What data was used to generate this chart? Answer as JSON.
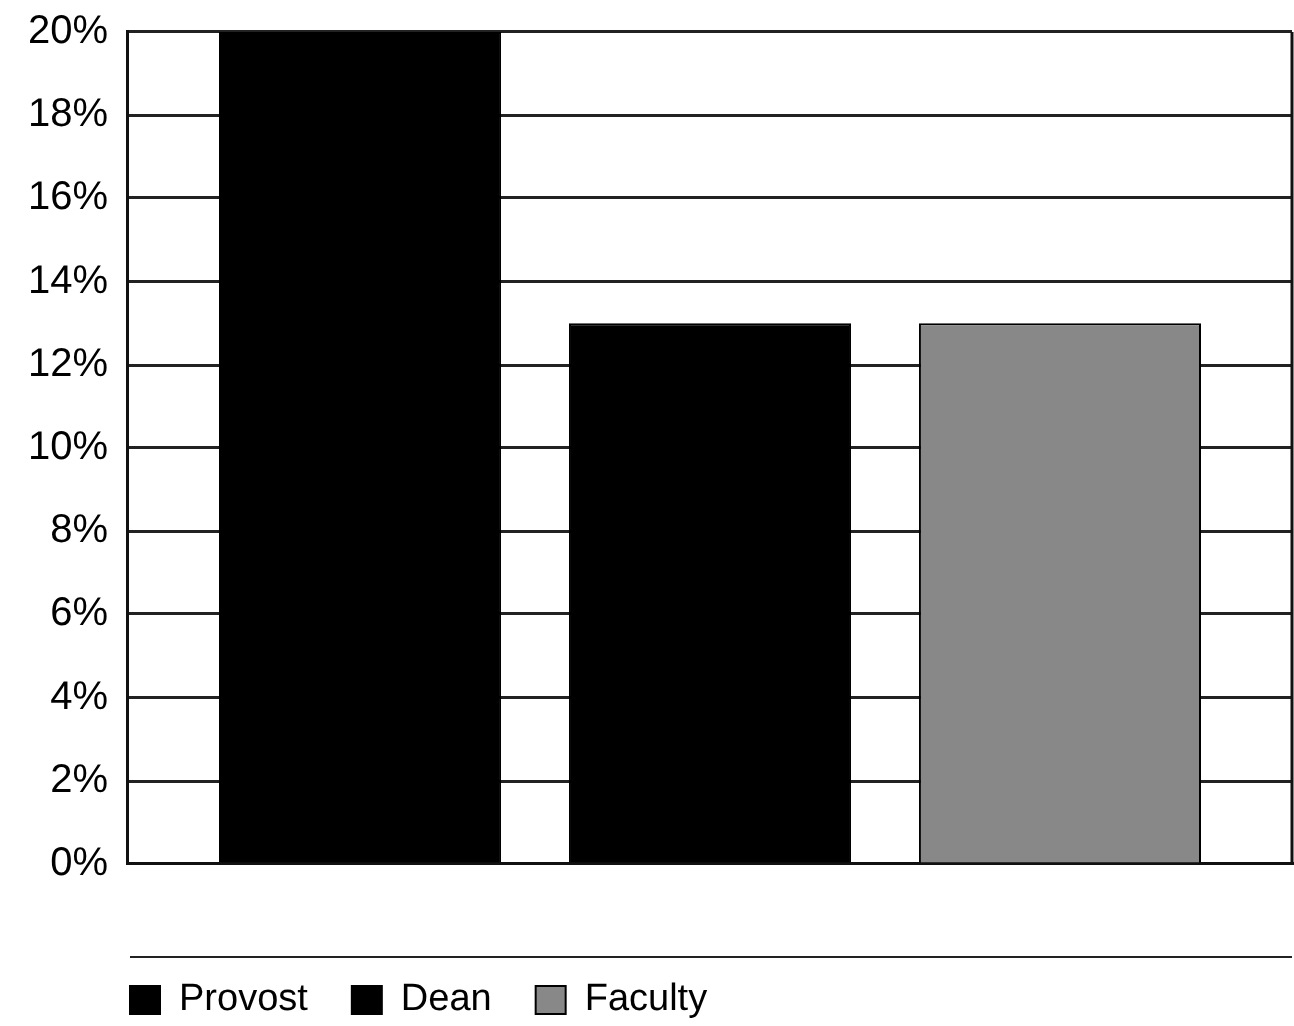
{
  "chart_data": {
    "type": "bar",
    "categories": [
      null
    ],
    "series": [
      {
        "name": "Provost",
        "color": "#000000",
        "values": [
          20
        ]
      },
      {
        "name": "Dean",
        "color": "#000000",
        "values": [
          13
        ]
      },
      {
        "name": "Faculty",
        "color": "#888888",
        "values": [
          13
        ]
      }
    ],
    "ylim": [
      0,
      20
    ],
    "yticks": [
      {
        "value": 0,
        "label": "0%"
      },
      {
        "value": 2,
        "label": "2%"
      },
      {
        "value": 4,
        "label": "4%"
      },
      {
        "value": 6,
        "label": "6%"
      },
      {
        "value": 8,
        "label": "8%"
      },
      {
        "value": 10,
        "label": "10%"
      },
      {
        "value": 12,
        "label": "12%"
      },
      {
        "value": 14,
        "label": "14%"
      },
      {
        "value": 16,
        "label": "16%"
      },
      {
        "value": 18,
        "label": "18%"
      },
      {
        "value": 20,
        "label": "20%"
      }
    ],
    "grid": "y",
    "legend": "bottom"
  }
}
